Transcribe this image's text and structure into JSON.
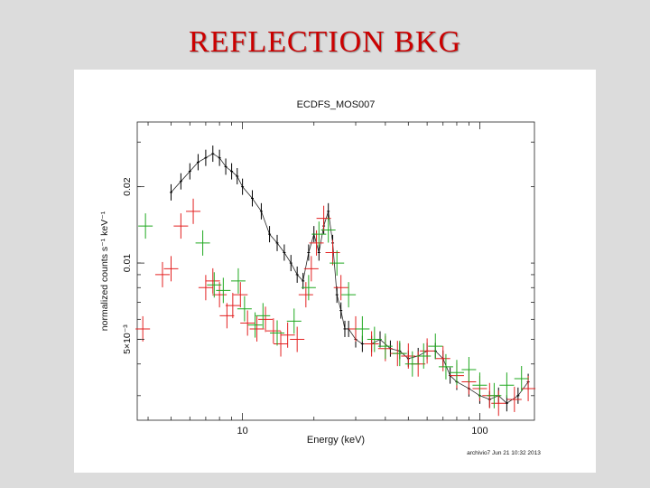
{
  "slide": {
    "title": "REFLECTION BKG"
  },
  "chart_data": {
    "type": "scatter",
    "title": "ECDFS_MOS007",
    "xlabel": "Energy (keV)",
    "ylabel": "normalized counts s⁻¹ keV⁻¹",
    "x_scale": "log",
    "y_scale": "log",
    "xlim": [
      3.6,
      170
    ],
    "ylim": [
      0.0024,
      0.036
    ],
    "x_ticks": [
      10,
      100
    ],
    "y_ticks": [
      {
        "value": 0.005,
        "label": "5×10⁻³"
      },
      {
        "value": 0.01,
        "label": "0.01"
      },
      {
        "value": 0.02,
        "label": "0.02"
      }
    ],
    "grid": false,
    "legend": "none",
    "footer": "archivio7  Jun 21 10:32 2013",
    "series": [
      {
        "color": "#000000",
        "style": "dense-step-errorbars",
        "x": [
          5.0,
          5.5,
          6.0,
          6.5,
          7.0,
          7.5,
          8.0,
          8.5,
          9.0,
          9.5,
          10.0,
          11.0,
          12.0,
          13.0,
          14.0,
          15.0,
          16.0,
          17.0,
          18.0,
          19.0,
          20.0,
          21.0,
          22.0,
          23.0,
          24.0,
          25.0,
          26.0,
          27.0,
          28.0,
          30.0,
          32.0,
          35.0,
          38.0,
          42.0,
          46.0,
          50.0,
          55.0,
          60.0,
          65.0,
          70.0,
          75.0,
          80.0,
          90.0,
          100.0,
          110.0,
          120.0,
          130.0,
          145.0,
          160.0
        ],
        "y": [
          0.019,
          0.021,
          0.023,
          0.025,
          0.026,
          0.027,
          0.026,
          0.024,
          0.023,
          0.022,
          0.02,
          0.018,
          0.016,
          0.013,
          0.012,
          0.011,
          0.01,
          0.009,
          0.0085,
          0.011,
          0.013,
          0.011,
          0.014,
          0.016,
          0.012,
          0.0075,
          0.0065,
          0.0055,
          0.0055,
          0.005,
          0.0048,
          0.0048,
          0.005,
          0.0046,
          0.0045,
          0.0042,
          0.0043,
          0.0045,
          0.0045,
          0.0042,
          0.0036,
          0.0034,
          0.0032,
          0.003,
          0.0029,
          0.003,
          0.0028,
          0.003,
          0.0034
        ]
      },
      {
        "color": "#e32020",
        "style": "errorbars",
        "x": [
          3.8,
          4.6,
          5.0,
          5.5,
          6.2,
          7.0,
          7.5,
          8.0,
          8.6,
          9.1,
          9.8,
          10.5,
          11.5,
          12.5,
          13.5,
          14.5,
          15.5,
          17.0,
          18.5,
          19.5,
          20.5,
          22.0,
          24.0,
          26.0,
          30.0,
          35.0,
          40.0,
          45.0,
          50.0,
          55.0,
          60.0,
          70.0,
          80.0,
          90.0,
          100.0,
          110.0,
          120.0,
          140.0,
          160.0
        ],
        "y": [
          0.0055,
          0.009,
          0.0095,
          0.014,
          0.016,
          0.008,
          0.0085,
          0.0075,
          0.0062,
          0.0068,
          0.0075,
          0.0058,
          0.0055,
          0.006,
          0.0054,
          0.0048,
          0.0052,
          0.005,
          0.0075,
          0.0095,
          0.012,
          0.015,
          0.011,
          0.008,
          0.0055,
          0.0048,
          0.0046,
          0.0044,
          0.0043,
          0.004,
          0.0045,
          0.0042,
          0.0036,
          0.0034,
          0.0032,
          0.003,
          0.0028,
          0.0029,
          0.0032
        ]
      },
      {
        "color": "#1fa81f",
        "style": "errorbars",
        "x": [
          3.9,
          6.8,
          7.6,
          8.3,
          9.6,
          10.2,
          11.3,
          12.2,
          14.0,
          16.5,
          19.0,
          21.0,
          23.0,
          25.0,
          28.0,
          32.0,
          36.0,
          40.0,
          46.0,
          52.0,
          58.0,
          65.0,
          72.0,
          80.0,
          90.0,
          100.0,
          115.0,
          130.0,
          150.0
        ],
        "y": [
          0.014,
          0.012,
          0.0082,
          0.0078,
          0.0085,
          0.0066,
          0.0057,
          0.0062,
          0.0053,
          0.0059,
          0.008,
          0.013,
          0.0135,
          0.01,
          0.0075,
          0.0055,
          0.005,
          0.0047,
          0.0044,
          0.004,
          0.0043,
          0.0047,
          0.0039,
          0.0037,
          0.0038,
          0.0033,
          0.003,
          0.0033,
          0.0035
        ]
      }
    ]
  }
}
